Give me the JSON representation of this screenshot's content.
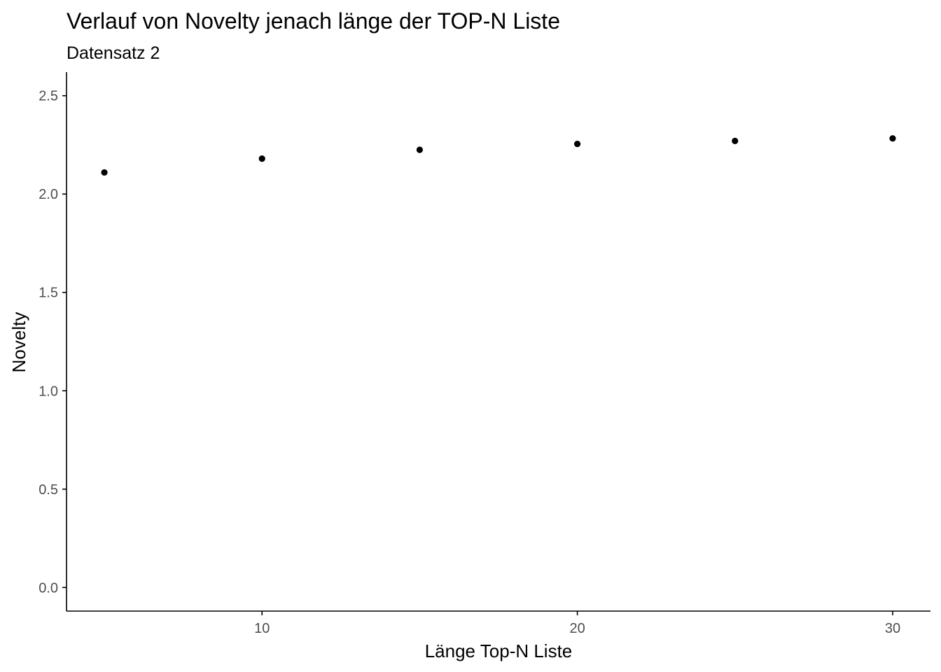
{
  "chart_data": {
    "type": "scatter",
    "title": "Verlauf von Novelty jenach länge der TOP-N Liste",
    "subtitle": "Datensatz 2",
    "xlabel": "Länge Top-N Liste",
    "ylabel": "Novelty",
    "x": [
      5,
      10,
      15,
      20,
      25,
      30
    ],
    "y": [
      2.11,
      2.18,
      2.225,
      2.255,
      2.27,
      2.283
    ],
    "xlim": [
      3.8,
      31.2
    ],
    "ylim": [
      -0.12,
      2.62
    ],
    "xticks": [
      10,
      20,
      30
    ],
    "xtick_labels": [
      "10",
      "20",
      "30"
    ],
    "yticks": [
      0.0,
      0.5,
      1.0,
      1.5,
      2.0,
      2.5
    ],
    "ytick_labels": [
      "0.0",
      "0.5",
      "1.0",
      "1.5",
      "2.0",
      "2.5"
    ],
    "grid": false,
    "legend": false,
    "point_color": "#000000"
  }
}
